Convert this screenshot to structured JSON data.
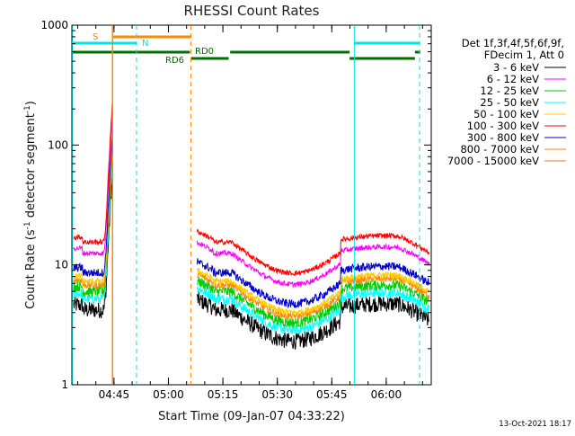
{
  "chart_data": {
    "type": "line",
    "title": "RHESSI Count Rates",
    "xlabel": "Start Time (09-Jan-07 04:33:22)",
    "ylabel_main": "Count Rate (s",
    "ylabel_sup1": "-1",
    "ylabel_mid": " detector segment",
    "ylabel_sup2": "-1",
    "ylabel_end": ")",
    "y_scale": "log",
    "ylim": [
      1,
      1000
    ],
    "xlim_minutes": [
      0,
      99
    ],
    "x_ticks": [
      {
        "label": "04:45",
        "minutes": 11.6
      },
      {
        "label": "05:00",
        "minutes": 26.6
      },
      {
        "label": "05:15",
        "minutes": 41.6
      },
      {
        "label": "05:30",
        "minutes": 56.6
      },
      {
        "label": "05:45",
        "minutes": 71.6
      },
      {
        "label": "06:00",
        "minutes": 86.6
      }
    ],
    "y_ticks": [
      {
        "label": "1",
        "value": 1
      },
      {
        "label": "10",
        "value": 10
      },
      {
        "label": "100",
        "value": 100
      },
      {
        "label": "1000",
        "value": 1000
      }
    ],
    "legend_header": [
      "Det 1f,3f,4f,5f,6f,9f,",
      "FDecim 1, Att 0"
    ],
    "series": [
      {
        "name": "3 - 6 keV",
        "color": "#000000"
      },
      {
        "name": "6 - 12 keV",
        "color": "#ff00ff"
      },
      {
        "name": "12 - 25 keV",
        "color": "#00cc00"
      },
      {
        "name": "25 - 50 keV",
        "color": "#00ffff"
      },
      {
        "name": "50 - 100 keV",
        "color": "#ffcc00"
      },
      {
        "name": "100 - 300 keV",
        "color": "#ff0000"
      },
      {
        "name": "300 - 800 keV",
        "color": "#0000cc"
      },
      {
        "name": "800 - 7000 keV",
        "color": "#ff8800"
      },
      {
        "name": "7000 - 15000 keV",
        "color": "#ff7700"
      }
    ],
    "flag_labels": {
      "saa": "S",
      "night": "N",
      "rd0": "RD0",
      "rd6": "RD6"
    },
    "footer_date": "13-Oct-2021 18:17"
  }
}
